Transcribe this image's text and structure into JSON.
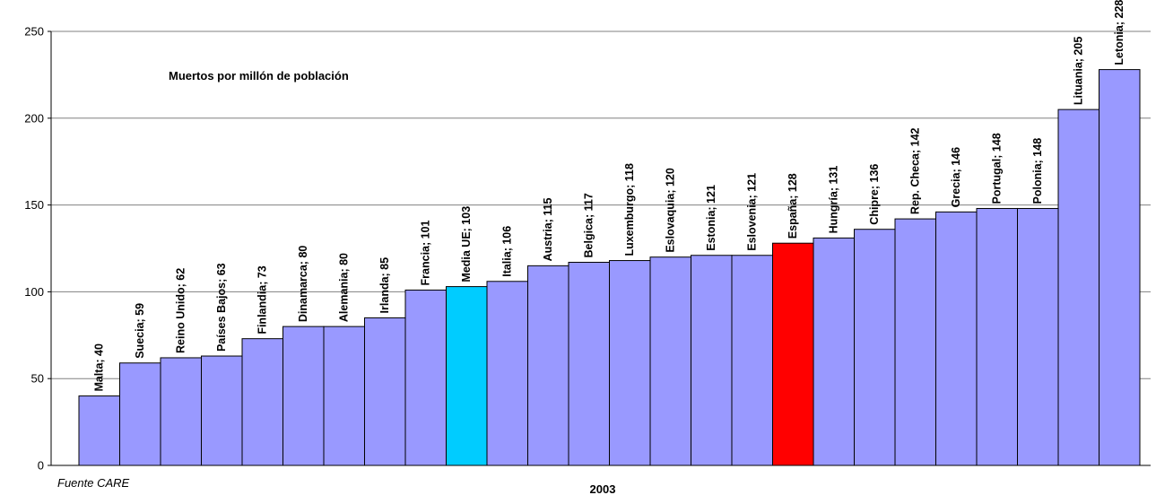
{
  "chart_data": {
    "type": "bar",
    "title": "",
    "annotation": "Muertos por millón de población",
    "xlabel": "2003",
    "ylabel": "",
    "source": "Fuente CARE",
    "ylim": [
      0,
      250
    ],
    "yticks": [
      0,
      50,
      100,
      150,
      200,
      250
    ],
    "grid": true,
    "legend": "none",
    "colors": {
      "default": "#9999ff",
      "highlight_avg": "#00ccff",
      "highlight_spain": "#ff0000",
      "grid": "#808080"
    },
    "bars": [
      {
        "label": "Malta; 40",
        "category": "Malta",
        "value": 40,
        "color": "#9999ff"
      },
      {
        "label": "Suecia; 59",
        "category": "Suecia",
        "value": 59,
        "color": "#9999ff"
      },
      {
        "label": "Reino Unido; 62",
        "category": "Reino Unido",
        "value": 62,
        "color": "#9999ff"
      },
      {
        "label": "Países Bajos; 63",
        "category": "Países Bajos",
        "value": 63,
        "color": "#9999ff"
      },
      {
        "label": "Finlandia; 73",
        "category": "Finlandia",
        "value": 73,
        "color": "#9999ff"
      },
      {
        "label": "Dinamarca; 80",
        "category": "Dinamarca",
        "value": 80,
        "color": "#9999ff"
      },
      {
        "label": "Alemania; 80",
        "category": "Alemania",
        "value": 80,
        "color": "#9999ff"
      },
      {
        "label": "Irlanda; 85",
        "category": "Irlanda",
        "value": 85,
        "color": "#9999ff"
      },
      {
        "label": "Francia; 101",
        "category": "Francia",
        "value": 101,
        "color": "#9999ff"
      },
      {
        "label": "Media UE; 103",
        "category": "Media UE",
        "value": 103,
        "color": "#00ccff"
      },
      {
        "label": "Italia; 106",
        "category": "Italia",
        "value": 106,
        "color": "#9999ff"
      },
      {
        "label": "Austria; 115",
        "category": "Austria",
        "value": 115,
        "color": "#9999ff"
      },
      {
        "label": "Belgica; 117",
        "category": "Belgica",
        "value": 117,
        "color": "#9999ff"
      },
      {
        "label": "Luxemburgo; 118",
        "category": "Luxemburgo",
        "value": 118,
        "color": "#9999ff"
      },
      {
        "label": "Eslovaquia; 120",
        "category": "Eslovaquia",
        "value": 120,
        "color": "#9999ff"
      },
      {
        "label": "Estonia; 121",
        "category": "Estonia",
        "value": 121,
        "color": "#9999ff"
      },
      {
        "label": "Eslovenia; 121",
        "category": "Eslovenia",
        "value": 121,
        "color": "#9999ff"
      },
      {
        "label": "España; 128",
        "category": "España",
        "value": 128,
        "color": "#ff0000"
      },
      {
        "label": "Hungría; 131",
        "category": "Hungría",
        "value": 131,
        "color": "#9999ff"
      },
      {
        "label": "Chipre; 136",
        "category": "Chipre",
        "value": 136,
        "color": "#9999ff"
      },
      {
        "label": "Rep. Checa; 142",
        "category": "Rep. Checa",
        "value": 142,
        "color": "#9999ff"
      },
      {
        "label": "Grecia; 146",
        "category": "Grecia",
        "value": 146,
        "color": "#9999ff"
      },
      {
        "label": "Portugal; 148",
        "category": "Portugal",
        "value": 148,
        "color": "#9999ff"
      },
      {
        "label": "Polonia; 148",
        "category": "Polonia",
        "value": 148,
        "color": "#9999ff"
      },
      {
        "label": "Lituania; 205",
        "category": "Lituania",
        "value": 205,
        "color": "#9999ff"
      },
      {
        "label": "Letonia; 228",
        "category": "Letonia",
        "value": 228,
        "color": "#9999ff"
      }
    ]
  }
}
